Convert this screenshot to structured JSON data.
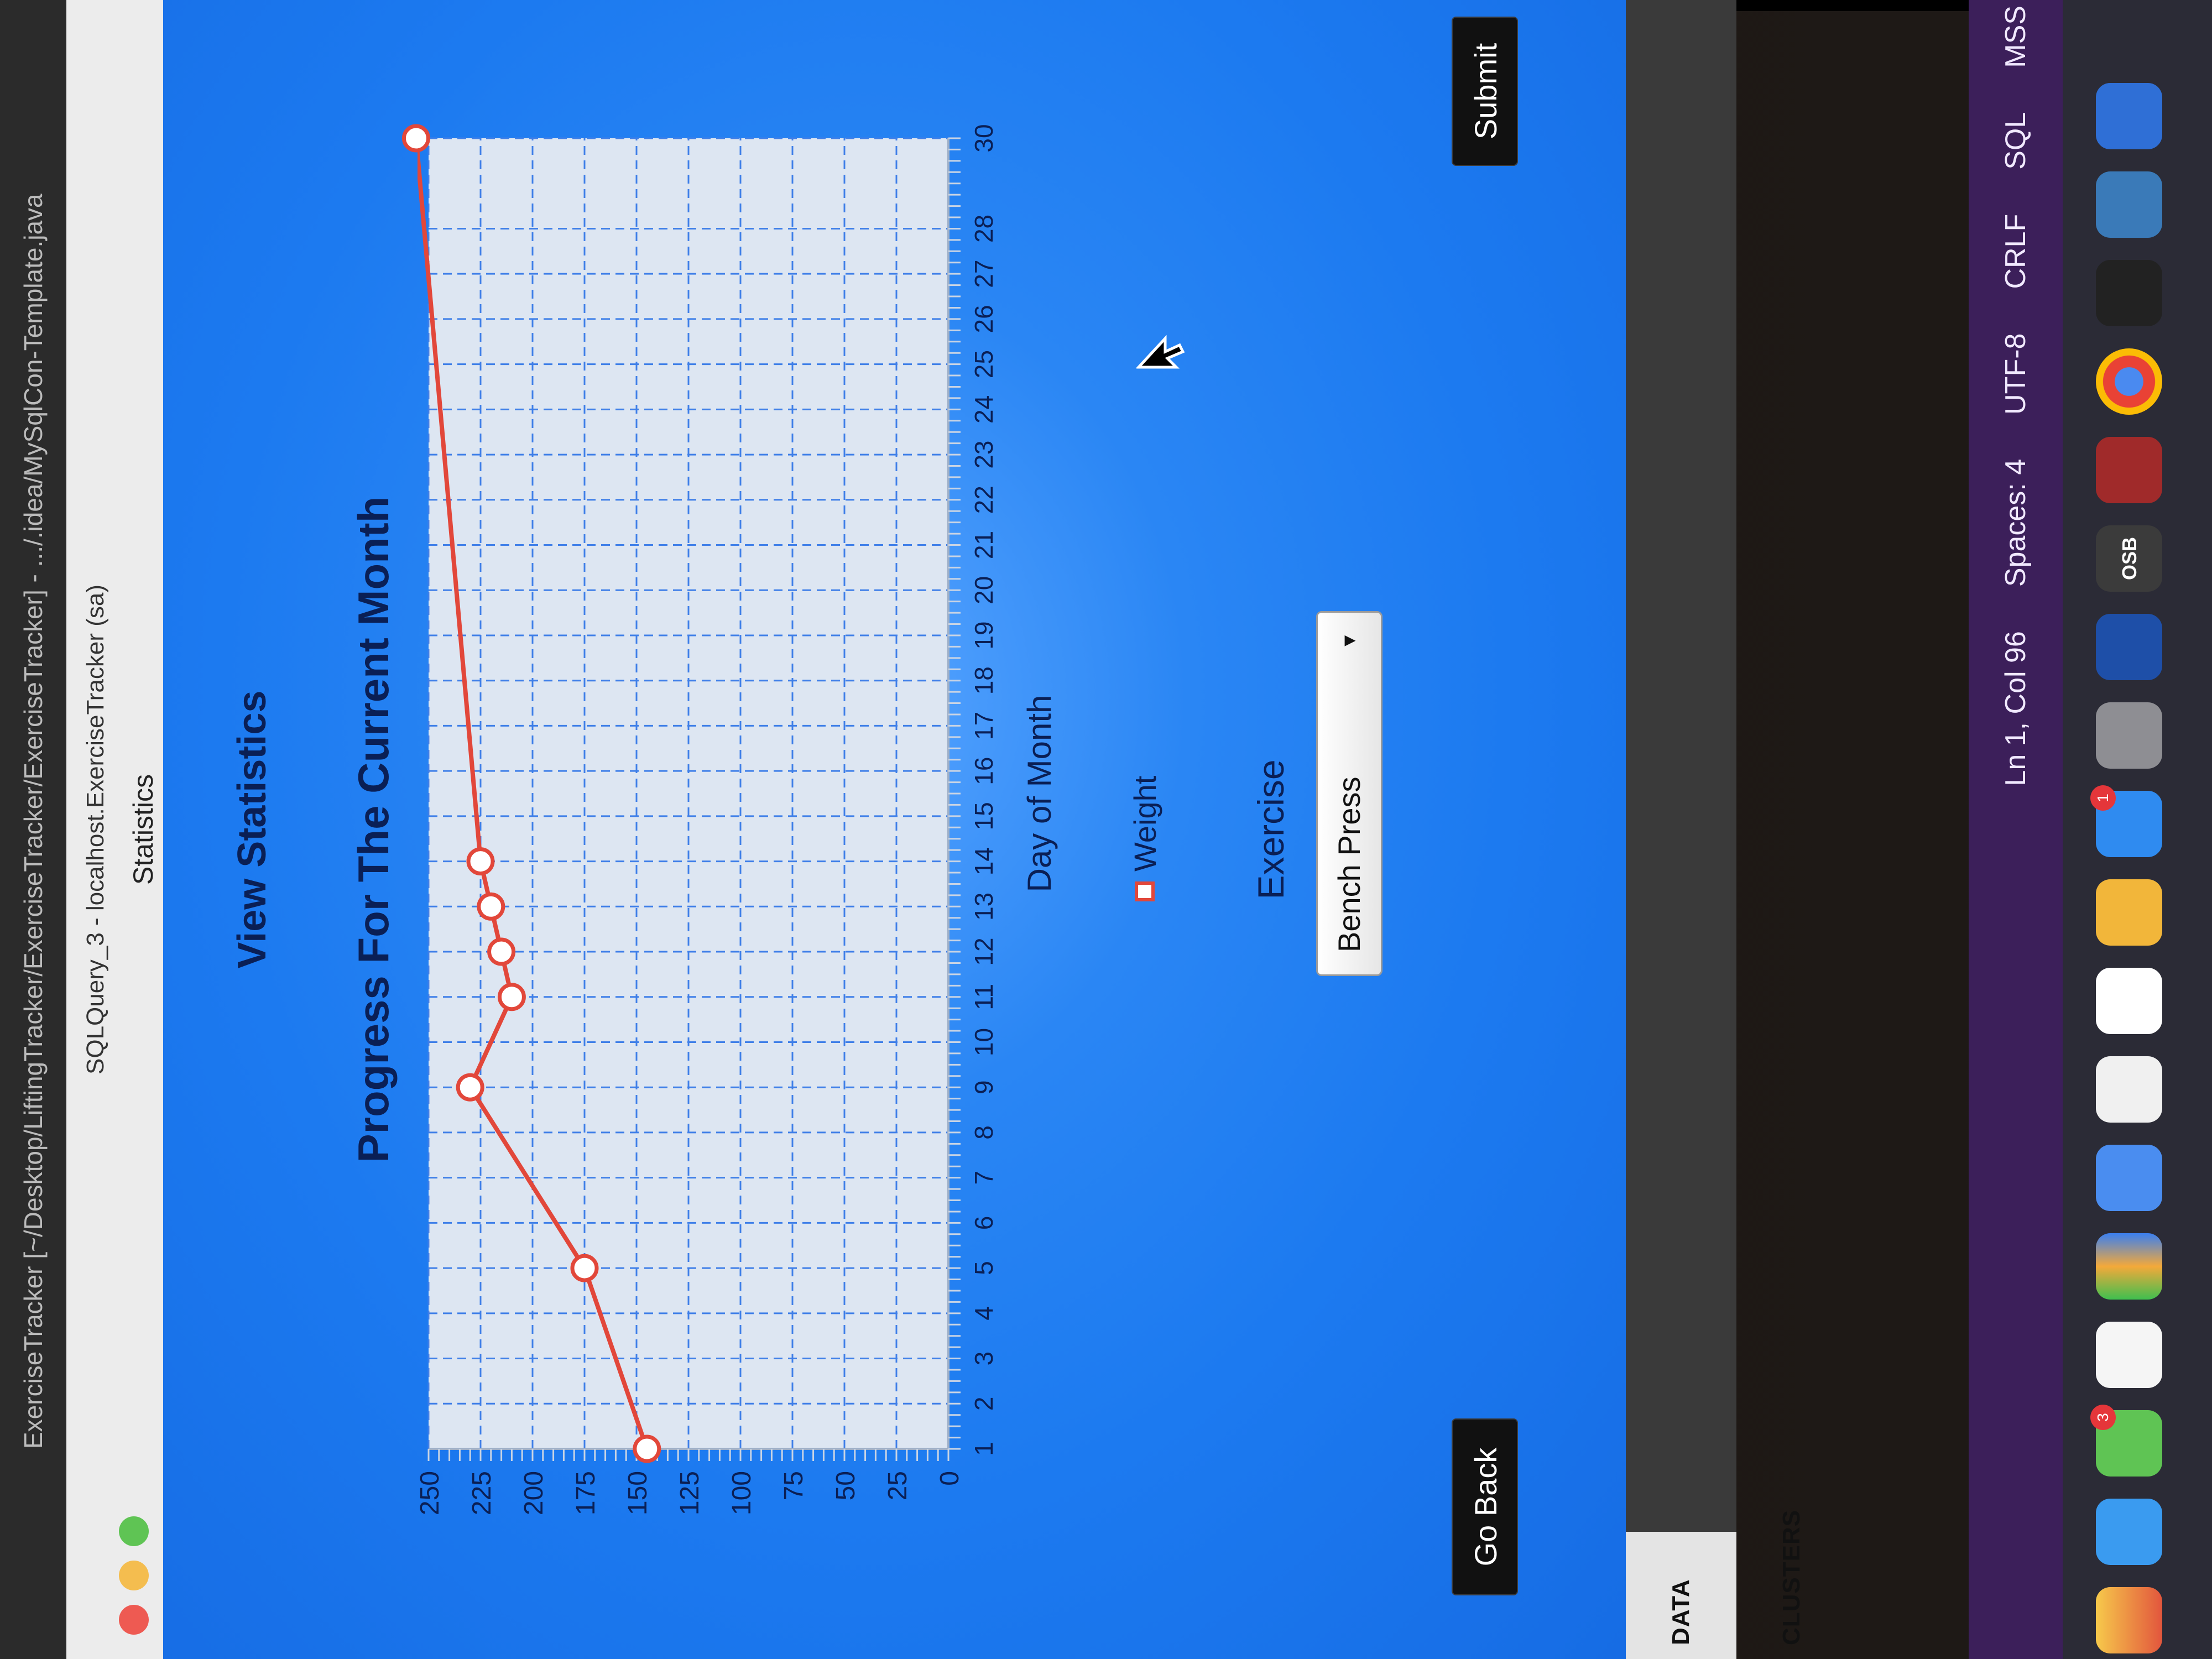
{
  "ide": {
    "title_bar": "ExerciseTracker [~/Desktop/LiftingTracker/ExerciseTracker/ExerciseTracker] - .../.idea/MySqlCon-Template.java"
  },
  "window": {
    "subtitle": "SQLQuery_3 - localhost.ExerciseTracker (sa)",
    "title": "Statistics"
  },
  "page": {
    "heading": "View Statistics",
    "chart_title": "Progress For The Current Month",
    "legend_label": "Weight",
    "exercise_label": "Exercise",
    "exercise_selected": "Bench Press",
    "go_back_label": "Go Back",
    "submit_label": "Submit"
  },
  "left_panel": {
    "section_label": "DATA CLUSTERS"
  },
  "status_bar": {
    "position": "Ln 1, Col 96",
    "spaces": "Spaces: 4",
    "encoding": "UTF-8",
    "line_endings": "CRLF",
    "language": "SQL",
    "extra": "MSS"
  },
  "dock": {
    "badge_1": "3",
    "badge_2": "1",
    "osb_label": "OSB"
  },
  "colors": {
    "background_blue": "#1c7af0",
    "line_red": "#e2473a",
    "heading_navy": "#0a1f55",
    "button_black": "#111111",
    "status_purple": "#3c1f5a"
  },
  "chart_data": {
    "type": "line",
    "title": "Progress For The Current Month",
    "xlabel": "Day of Month",
    "ylabel": "",
    "x_ticks": [
      1,
      2,
      3,
      4,
      5,
      6,
      7,
      8,
      9,
      10,
      11,
      12,
      13,
      14,
      15,
      16,
      17,
      18,
      19,
      20,
      21,
      22,
      23,
      24,
      25,
      26,
      27,
      28,
      30
    ],
    "y_ticks": [
      0,
      25,
      50,
      75,
      100,
      125,
      150,
      175,
      200,
      225,
      250
    ],
    "xlim": [
      1,
      30
    ],
    "ylim": [
      0,
      250
    ],
    "grid": true,
    "legend": "bottom-center",
    "series": [
      {
        "name": "Weight",
        "x": [
          1,
          5,
          9,
          11,
          12,
          13,
          14,
          30
        ],
        "y": [
          145,
          175,
          230,
          210,
          215,
          220,
          225,
          275
        ]
      }
    ]
  }
}
